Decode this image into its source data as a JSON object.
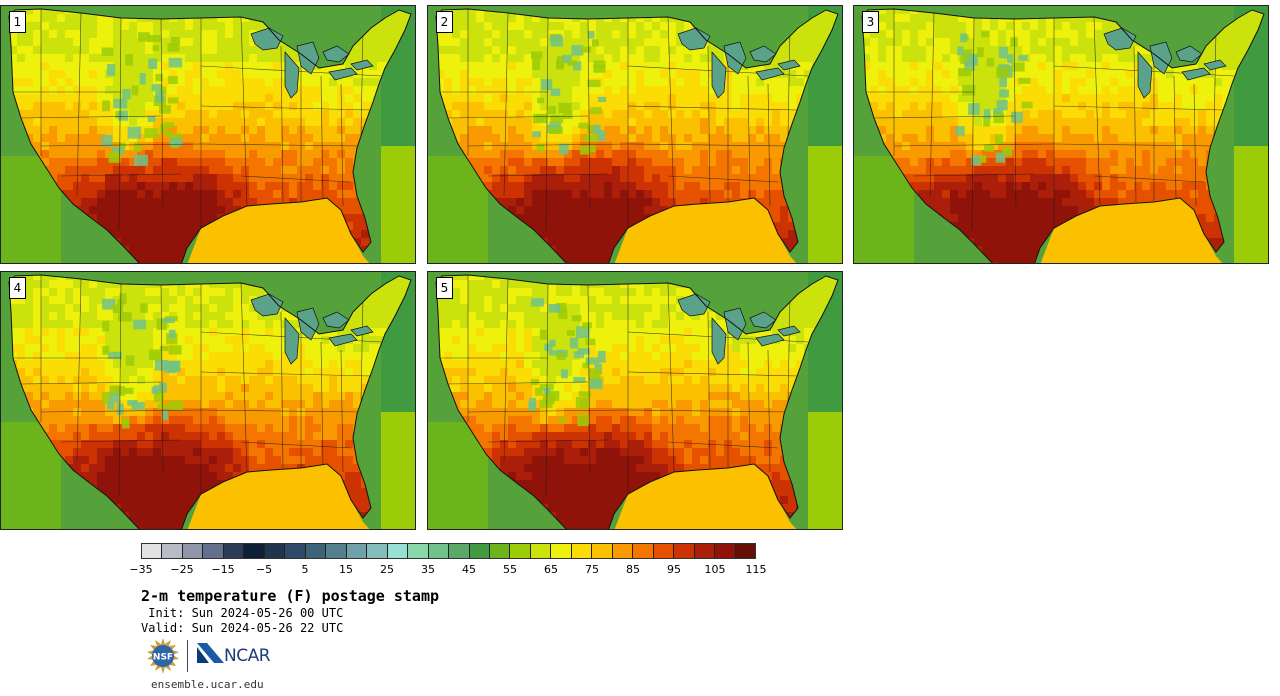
{
  "members": [
    {
      "label": "1"
    },
    {
      "label": "2"
    },
    {
      "label": "3"
    },
    {
      "label": "4"
    },
    {
      "label": "5"
    }
  ],
  "colorbar": {
    "tick_labels": [
      "−35",
      "−25",
      "−15",
      "−5",
      "5",
      "15",
      "25",
      "35",
      "45",
      "55",
      "65",
      "75",
      "85",
      "95",
      "105",
      "115"
    ],
    "colors": [
      "#e2e2e2",
      "#b8bcc6",
      "#8e96a8",
      "#63708c",
      "#2e3b57",
      "#0f1f37",
      "#1f344f",
      "#2e4a66",
      "#3d637b",
      "#54808d",
      "#70a1a8",
      "#86bdbb",
      "#96e0d4",
      "#88d6a9",
      "#70c28a",
      "#59aa68",
      "#3f9a40",
      "#6cb41c",
      "#9ccb08",
      "#cce20d",
      "#eef10c",
      "#fbdd05",
      "#fbc000",
      "#f99b00",
      "#f47600",
      "#e65100",
      "#cd3203",
      "#ab1f0a",
      "#8f1308",
      "#651005"
    ]
  },
  "title": "2-m temperature (F) postage stamp",
  "init_line": " Init: Sun 2024-05-26 00 UTC",
  "valid_line": "Valid: Sun 2024-05-26 22 UTC",
  "logos": {
    "nsf": "NSF",
    "ncar": "NCAR"
  },
  "footer_url": "ensemble.ucar.edu"
}
